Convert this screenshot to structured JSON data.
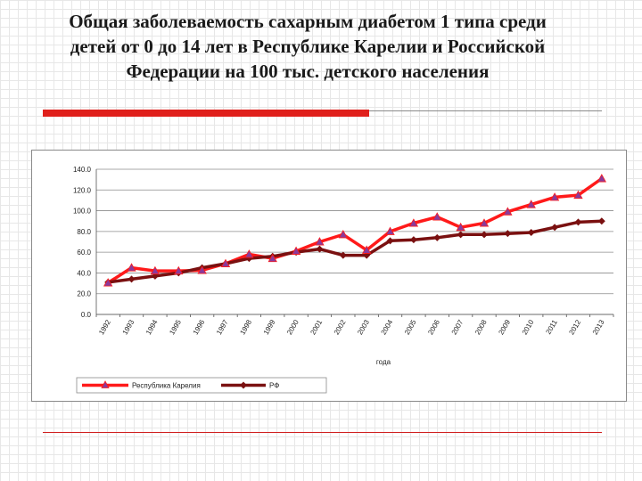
{
  "slide": {
    "title_line1": "Общая заболеваемость сахарным диабетом 1 типа среди",
    "title_line2": "детей от 0 до 14 лет в Республике Карелии и Российской",
    "title_line3": "Федерации на 100 тыс. детского населения"
  },
  "colors": {
    "accent": "#e0201c",
    "series_karelia": "#ff1a1a",
    "series_rf": "#7a1010",
    "marker_karelia": "#8a3a9a"
  },
  "chart_data": {
    "type": "line",
    "title": "",
    "xlabel": "года",
    "ylabel": "",
    "ylim": [
      0,
      140
    ],
    "yticks": [
      "0.0",
      "20.0",
      "40.0",
      "60.0",
      "80.0",
      "100.0",
      "120.0",
      "140.0"
    ],
    "grid": true,
    "legend_position": "bottom",
    "x": [
      "1992",
      "1993",
      "1994",
      "1995",
      "1996",
      "1997",
      "1998",
      "1999",
      "2000",
      "2001",
      "2002",
      "2003",
      "2004",
      "2005",
      "2006",
      "2007",
      "2008",
      "2009",
      "2010",
      "2011",
      "2012",
      "2013"
    ],
    "series": [
      {
        "name": "Республика Карелия",
        "color": "#ff1a1a",
        "values": [
          30.5,
          45.0,
          42.0,
          42.0,
          42.5,
          49.0,
          58.0,
          54.0,
          61.0,
          70.0,
          77.0,
          62.0,
          80.0,
          88.0,
          94.0,
          84.0,
          88.0,
          99.0,
          106.0,
          113.0,
          115.0,
          131.0
        ]
      },
      {
        "name": "РФ",
        "color": "#7a1010",
        "values": [
          31.0,
          34.0,
          37.0,
          40.0,
          45.0,
          49.0,
          54.0,
          56.0,
          60.0,
          63.0,
          57.0,
          57.0,
          71.0,
          72.0,
          74.0,
          77.0,
          77.0,
          78.0,
          79.0,
          84.0,
          89.0,
          90.0
        ]
      }
    ]
  }
}
